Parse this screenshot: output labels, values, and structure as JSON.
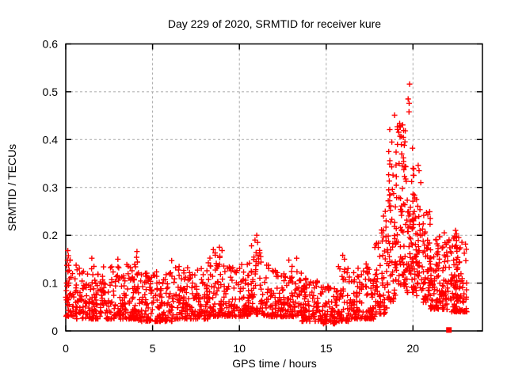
{
  "chart_data": {
    "type": "scatter",
    "title": "Day 229 of 2020, SRMTID for receiver kure",
    "xlabel": "GPS time / hours",
    "ylabel": "SRMTID / TECUs",
    "xlim": [
      0,
      24
    ],
    "ylim": [
      0,
      0.6
    ],
    "xticks": [
      0,
      5,
      10,
      15,
      20
    ],
    "yticks": [
      0,
      0.1,
      0.2,
      0.3,
      0.4,
      0.5,
      0.6
    ],
    "xtick_labels": [
      "0",
      "5",
      "10",
      "15",
      "20"
    ],
    "ytick_labels": [
      "0",
      "0.1",
      "0.2",
      "0.3",
      "0.4",
      "0.5",
      "0.6"
    ],
    "grid": true,
    "legend": "none",
    "marker": "plus",
    "colors": {
      "points": "#ff0000",
      "grid": "#a8a8a8",
      "axis": "#000000",
      "text": "#000000",
      "background": "#ffffff"
    },
    "seed": 20200229,
    "band_segments": [
      {
        "x0": 0.0,
        "x1": 0.6,
        "n": 55,
        "y_lo": 0.03,
        "y_hi": 0.15,
        "bias": 1.8
      },
      {
        "x0": 0.6,
        "x1": 2.2,
        "n": 125,
        "y_lo": 0.025,
        "y_hi": 0.135,
        "bias": 1.8
      },
      {
        "x0": 2.2,
        "x1": 4.2,
        "n": 155,
        "y_lo": 0.025,
        "y_hi": 0.14,
        "bias": 2.0
      },
      {
        "x0": 4.2,
        "x1": 6.2,
        "n": 150,
        "y_lo": 0.02,
        "y_hi": 0.125,
        "bias": 1.9
      },
      {
        "x0": 6.2,
        "x1": 8.2,
        "n": 150,
        "y_lo": 0.025,
        "y_hi": 0.135,
        "bias": 1.9
      },
      {
        "x0": 8.2,
        "x1": 9.4,
        "n": 95,
        "y_lo": 0.03,
        "y_hi": 0.16,
        "bias": 2.1
      },
      {
        "x0": 9.4,
        "x1": 10.5,
        "n": 85,
        "y_lo": 0.03,
        "y_hi": 0.14,
        "bias": 2.0
      },
      {
        "x0": 10.5,
        "x1": 11.4,
        "n": 75,
        "y_lo": 0.035,
        "y_hi": 0.17,
        "bias": 2.1
      },
      {
        "x0": 11.4,
        "x1": 13.0,
        "n": 120,
        "y_lo": 0.03,
        "y_hi": 0.14,
        "bias": 2.0
      },
      {
        "x0": 13.0,
        "x1": 13.6,
        "n": 45,
        "y_lo": 0.03,
        "y_hi": 0.15,
        "bias": 2.0
      },
      {
        "x0": 13.6,
        "x1": 14.8,
        "n": 90,
        "y_lo": 0.02,
        "y_hi": 0.11,
        "bias": 1.8
      },
      {
        "x0": 14.8,
        "x1": 15.7,
        "n": 65,
        "y_lo": 0.015,
        "y_hi": 0.095,
        "bias": 1.7
      },
      {
        "x0": 15.7,
        "x1": 16.3,
        "n": 48,
        "y_lo": 0.02,
        "y_hi": 0.135,
        "bias": 2.2
      },
      {
        "x0": 16.3,
        "x1": 17.8,
        "n": 115,
        "y_lo": 0.025,
        "y_hi": 0.135,
        "bias": 2.0
      },
      {
        "x0": 17.8,
        "x1": 18.5,
        "n": 62,
        "y_lo": 0.035,
        "y_hi": 0.22,
        "bias": 1.9
      },
      {
        "x0": 18.5,
        "x1": 19.0,
        "n": 58,
        "y_lo": 0.06,
        "y_hi": 0.36,
        "bias": 1.5
      },
      {
        "x0": 19.0,
        "x1": 19.6,
        "n": 78,
        "y_lo": 0.09,
        "y_hi": 0.44,
        "bias": 1.4
      },
      {
        "x0": 19.6,
        "x1": 20.2,
        "n": 78,
        "y_lo": 0.08,
        "y_hi": 0.34,
        "bias": 1.5
      },
      {
        "x0": 20.2,
        "x1": 21.0,
        "n": 85,
        "y_lo": 0.06,
        "y_hi": 0.28,
        "bias": 1.8
      },
      {
        "x0": 21.0,
        "x1": 22.0,
        "n": 110,
        "y_lo": 0.045,
        "y_hi": 0.2,
        "bias": 1.8
      },
      {
        "x0": 22.0,
        "x1": 23.1,
        "n": 120,
        "y_lo": 0.04,
        "y_hi": 0.2,
        "bias": 1.8
      }
    ],
    "outliers": [
      [
        0.12,
        0.168
      ],
      [
        0.15,
        0.157
      ],
      [
        0.1,
        0.148
      ],
      [
        1.5,
        0.152
      ],
      [
        3.0,
        0.15
      ],
      [
        4.1,
        0.166
      ],
      [
        4.08,
        0.154
      ],
      [
        4.13,
        0.144
      ],
      [
        6.1,
        0.147
      ],
      [
        8.5,
        0.17
      ],
      [
        8.6,
        0.163
      ],
      [
        8.85,
        0.175
      ],
      [
        9.0,
        0.168
      ],
      [
        10.7,
        0.178
      ],
      [
        10.9,
        0.19
      ],
      [
        11.0,
        0.2
      ],
      [
        11.05,
        0.185
      ],
      [
        12.85,
        0.148
      ],
      [
        13.3,
        0.152
      ],
      [
        15.95,
        0.158
      ],
      [
        16.05,
        0.15
      ],
      [
        17.3,
        0.14
      ],
      [
        18.3,
        0.24
      ],
      [
        18.4,
        0.25
      ],
      [
        18.45,
        0.23
      ],
      [
        18.6,
        0.375
      ],
      [
        18.66,
        0.421
      ],
      [
        18.78,
        0.395
      ],
      [
        18.94,
        0.451
      ],
      [
        19.2,
        0.35
      ],
      [
        19.25,
        0.407
      ],
      [
        19.27,
        0.426
      ],
      [
        19.35,
        0.37
      ],
      [
        19.5,
        0.388
      ],
      [
        19.72,
        0.485
      ],
      [
        19.77,
        0.458
      ],
      [
        19.78,
        0.476
      ],
      [
        19.8,
        0.516
      ],
      [
        19.97,
        0.382
      ],
      [
        20.0,
        0.34
      ],
      [
        20.05,
        0.325
      ],
      [
        20.3,
        0.346
      ],
      [
        20.35,
        0.335
      ],
      [
        20.45,
        0.31
      ],
      [
        21.8,
        0.205
      ],
      [
        22.4,
        0.195
      ],
      [
        22.45,
        0.21
      ],
      [
        22.5,
        0.203
      ]
    ],
    "special_points": [
      {
        "x": 22.07,
        "y": 0.002,
        "marker": "filled-square"
      }
    ]
  }
}
